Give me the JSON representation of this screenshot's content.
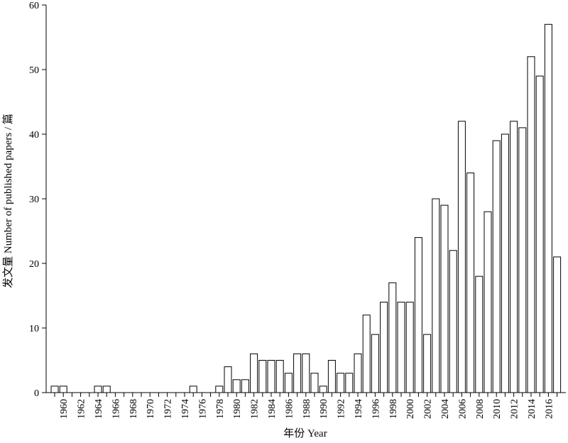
{
  "chart_data": {
    "type": "bar",
    "title": "",
    "xlabel": "年份 Year",
    "ylabel": "发文量 Number of published  papers / 篇",
    "ylim": [
      0,
      60
    ],
    "yticks": [
      0,
      10,
      20,
      30,
      40,
      50,
      60
    ],
    "grid": false,
    "legend": "none",
    "bar_fill": "#ffffff",
    "bar_stroke": "#000000",
    "x_tick_labels": [
      "1960",
      "1962",
      "1964",
      "1966",
      "1968",
      "1970",
      "1972",
      "1974",
      "1976",
      "1978",
      "1980",
      "1982",
      "1984",
      "1986",
      "1988",
      "1990",
      "1992",
      "1994",
      "1996",
      "1998",
      "2000",
      "2002",
      "2004",
      "2006",
      "2008",
      "2010",
      "2012",
      "2014",
      "2016"
    ],
    "categories": [
      1959,
      1960,
      1961,
      1962,
      1963,
      1964,
      1965,
      1966,
      1967,
      1968,
      1969,
      1970,
      1971,
      1972,
      1973,
      1974,
      1975,
      1976,
      1977,
      1978,
      1979,
      1980,
      1981,
      1982,
      1983,
      1984,
      1985,
      1986,
      1987,
      1988,
      1989,
      1990,
      1991,
      1992,
      1993,
      1994,
      1995,
      1996,
      1997,
      1998,
      1999,
      2000,
      2001,
      2002,
      2003,
      2004,
      2005,
      2006,
      2007,
      2008,
      2009,
      2010,
      2011,
      2012,
      2013,
      2014,
      2015,
      2016,
      2017
    ],
    "values": [
      1,
      1,
      0,
      0,
      0,
      1,
      1,
      0,
      0,
      0,
      0,
      0,
      0,
      0,
      0,
      0,
      1,
      0,
      0,
      1,
      4,
      2,
      2,
      6,
      5,
      5,
      5,
      3,
      6,
      6,
      3,
      1,
      5,
      3,
      3,
      6,
      12,
      9,
      14,
      17,
      14,
      14,
      24,
      9,
      30,
      29,
      22,
      42,
      34,
      18,
      28,
      39,
      40,
      42,
      41,
      52,
      49,
      57,
      21
    ]
  }
}
